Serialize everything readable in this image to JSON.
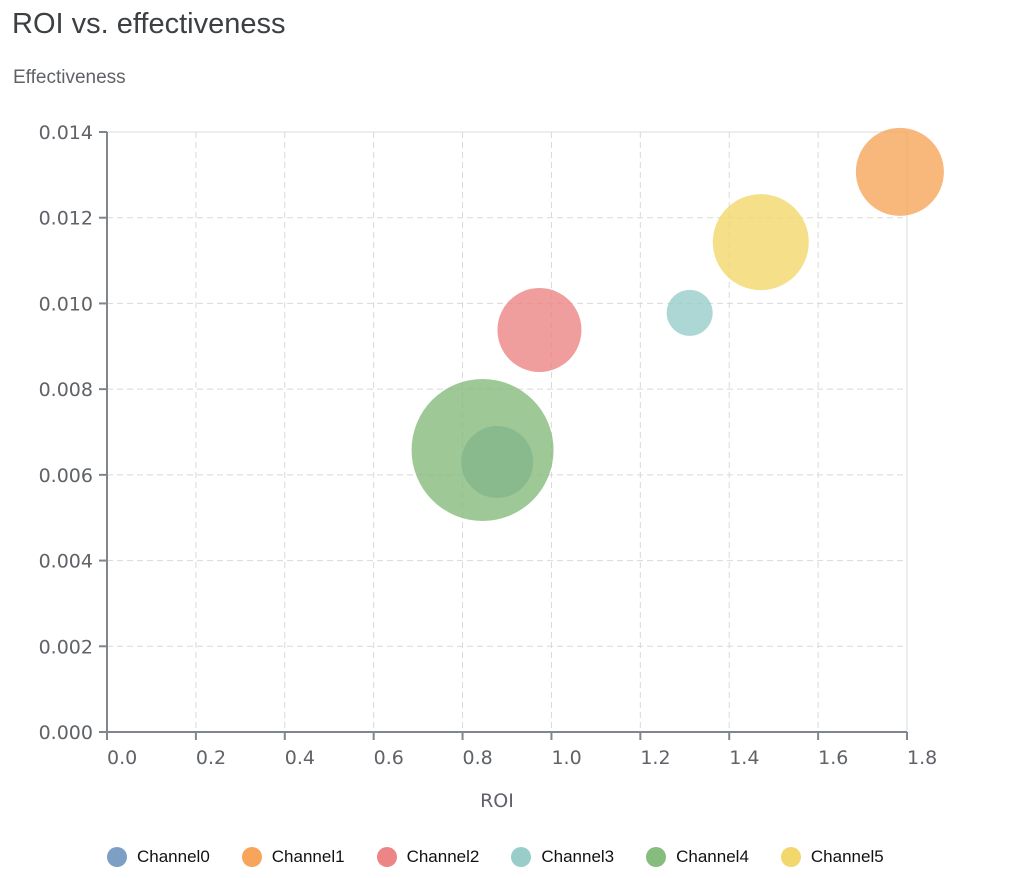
{
  "chart_data": {
    "type": "scatter",
    "title": "ROI vs. effectiveness",
    "ylabel": "Effectiveness",
    "xlabel": "ROI",
    "xlim": [
      0,
      1.8
    ],
    "ylim": [
      0,
      0.014
    ],
    "xticks": [
      "0.0",
      "0.2",
      "0.4",
      "0.6",
      "0.8",
      "1.0",
      "1.2",
      "1.4",
      "1.6",
      "1.8"
    ],
    "yticks": [
      "0.000",
      "0.002",
      "0.004",
      "0.006",
      "0.008",
      "0.010",
      "0.012",
      "0.014"
    ],
    "grid": true,
    "legend_position": "bottom",
    "series": [
      {
        "name": "Channel0",
        "color": "#7d9fc6",
        "x": 0.878,
        "y": 0.0063,
        "size": 1296
      },
      {
        "name": "Channel1",
        "color": "#f6a55a",
        "x": 1.784,
        "y": 0.01307,
        "size": 1936
      },
      {
        "name": "Channel2",
        "color": "#ec8585",
        "x": 0.973,
        "y": 0.00938,
        "size": 1764
      },
      {
        "name": "Channel3",
        "color": "#99cdca",
        "x": 1.311,
        "y": 0.00978,
        "size": 529
      },
      {
        "name": "Channel4",
        "color": "#86bc7d",
        "x": 0.845,
        "y": 0.00658,
        "size": 5041
      },
      {
        "name": "Channel5",
        "color": "#f2d76c",
        "x": 1.471,
        "y": 0.01143,
        "size": 2304
      }
    ]
  }
}
